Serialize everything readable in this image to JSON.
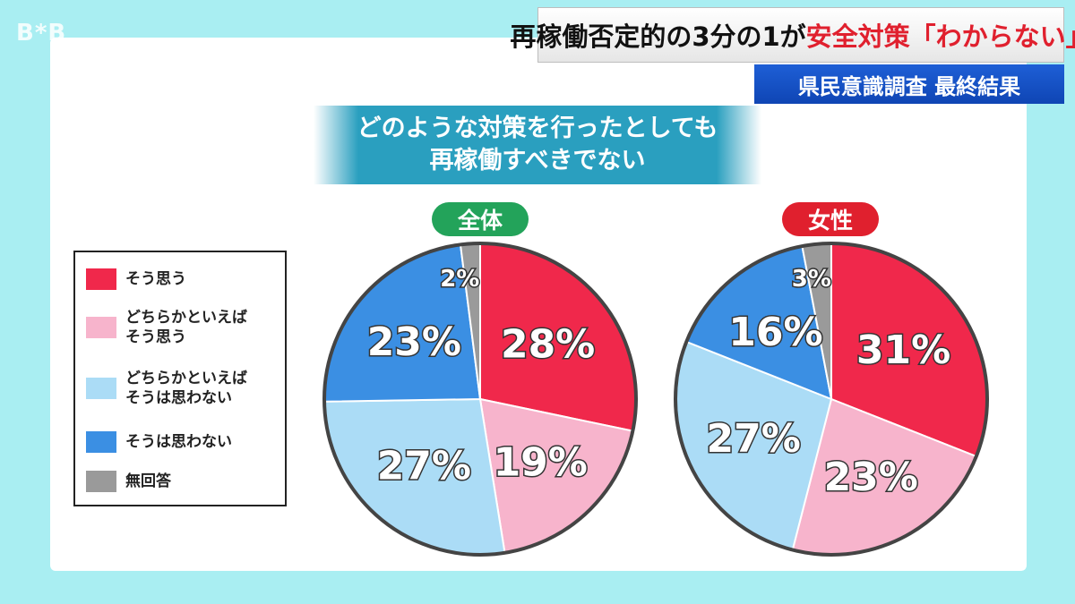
{
  "logo": "B*B",
  "headline": {
    "part1": "再稼働否定的の3分の1が",
    "part2": "安全対策「わからない」"
  },
  "subhead": "県民意識調査 最終結果",
  "question": {
    "line1": "どのような対策を行ったとしても",
    "line2": "再稼働すべきでない"
  },
  "legend": [
    {
      "label": "そう思う",
      "color": "#f0284b"
    },
    {
      "label": "どちらかといえば\nそう思う",
      "color": "#f7b4cc"
    },
    {
      "label": "どちらかといえば\nそうは思わない",
      "color": "#abdcf6"
    },
    {
      "label": "そうは思わない",
      "color": "#3b8fe3"
    },
    {
      "label": "無回答",
      "color": "#9a9a9a"
    }
  ],
  "chart_data": [
    {
      "type": "pie",
      "title": "全体",
      "title_color": "#23a35a",
      "categories": [
        "そう思う",
        "どちらかといえばそう思う",
        "どちらかといえばそうは思わない",
        "そうは思わない",
        "無回答"
      ],
      "values": [
        28,
        19,
        27,
        23,
        2
      ],
      "labels": [
        "28%",
        "19%",
        "27%",
        "23%",
        "2%"
      ],
      "colors": [
        "#f0284b",
        "#f7b4cc",
        "#abdcf6",
        "#3b8fe3",
        "#9a9a9a"
      ]
    },
    {
      "type": "pie",
      "title": "女性",
      "title_color": "#e0202e",
      "categories": [
        "そう思う",
        "どちらかといえばそう思う",
        "どちらかといえばそうは思わない",
        "そうは思わない",
        "無回答"
      ],
      "values": [
        31,
        23,
        27,
        16,
        3
      ],
      "labels": [
        "31%",
        "23%",
        "27%",
        "16%",
        "3%"
      ],
      "colors": [
        "#f0284b",
        "#f7b4cc",
        "#abdcf6",
        "#3b8fe3",
        "#9a9a9a"
      ]
    }
  ]
}
